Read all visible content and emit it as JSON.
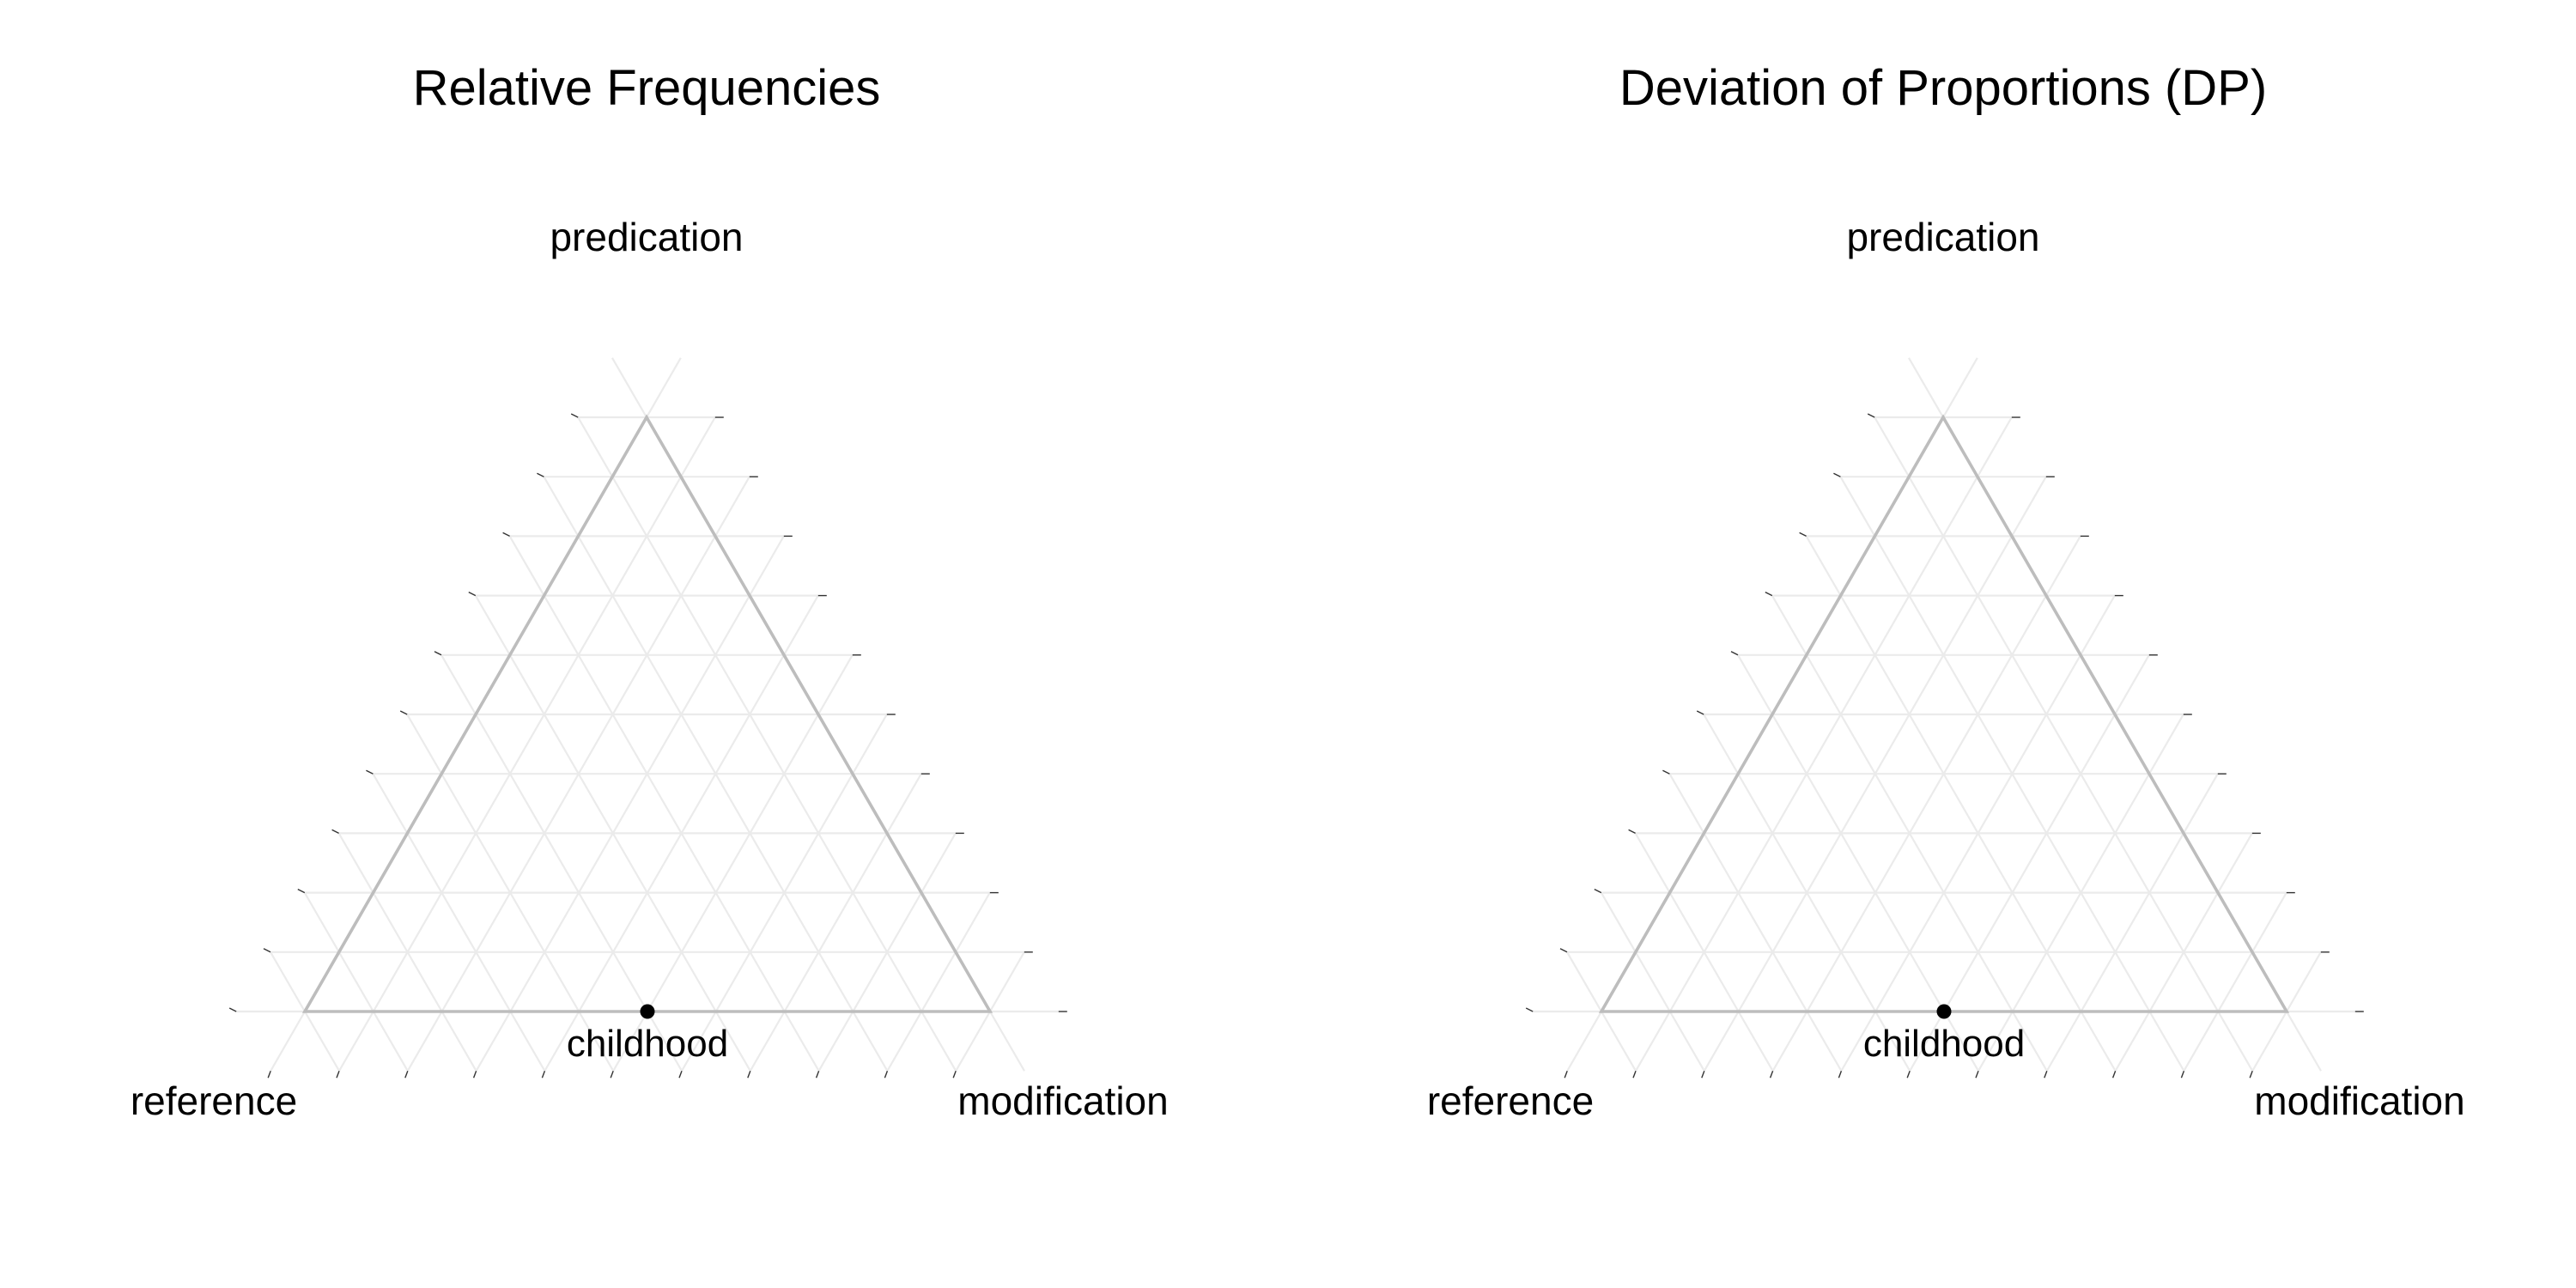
{
  "chart_data": [
    {
      "type": "scatter",
      "subtype": "ternary",
      "title": "Relative Frequencies",
      "axes": {
        "top": "predication",
        "left": "reference",
        "right": "modification"
      },
      "grid": true,
      "grid_step": 0.1,
      "points": [
        {
          "label": "childhood",
          "predication": 0.0,
          "reference": 0.5,
          "modification": 0.5
        }
      ]
    },
    {
      "type": "scatter",
      "subtype": "ternary",
      "title": "Deviation of Proportions (DP)",
      "axes": {
        "top": "predication",
        "left": "reference",
        "right": "modification"
      },
      "grid": true,
      "grid_step": 0.1,
      "points": [
        {
          "label": "childhood",
          "predication": 0.0,
          "reference": 0.5,
          "modification": 0.5
        }
      ]
    }
  ],
  "colors": {
    "frame": "#bdbdbd",
    "grid": "#ebebeb",
    "point": "#000000",
    "text": "#000000"
  }
}
